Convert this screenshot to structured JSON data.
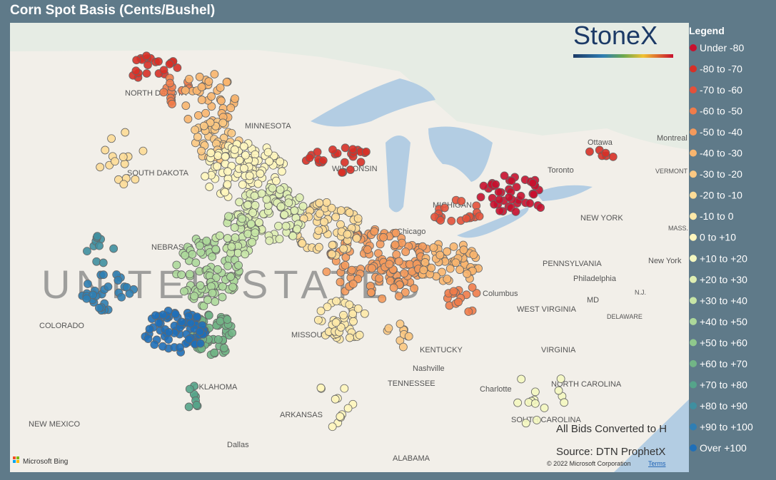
{
  "header": {
    "title": "Corn Spot Basis (Cents/Bushel)"
  },
  "logo": "StoneX",
  "legend": {
    "title": "Legend",
    "items": [
      {
        "label": "Under -80",
        "color": "#c8102e"
      },
      {
        "label": "-80 to -70",
        "color": "#d73027"
      },
      {
        "label": "-70 to -60",
        "color": "#e4513a"
      },
      {
        "label": "-60 to -50",
        "color": "#f07c4a"
      },
      {
        "label": "-50 to -40",
        "color": "#f49a5c"
      },
      {
        "label": "-40 to -30",
        "color": "#f8b56e"
      },
      {
        "label": "-30 to -20",
        "color": "#fbc882"
      },
      {
        "label": "-20 to -10",
        "color": "#fddc97"
      },
      {
        "label": "-10 to 0",
        "color": "#fee9a8"
      },
      {
        "label": "0 to +10",
        "color": "#fff6bd"
      },
      {
        "label": "+10 to +20",
        "color": "#f4f7c0"
      },
      {
        "label": "+20 to +30",
        "color": "#dfeeb2"
      },
      {
        "label": "+30 to +40",
        "color": "#c7e5a6"
      },
      {
        "label": "+40 to +50",
        "color": "#acd89a"
      },
      {
        "label": "+50 to +60",
        "color": "#8fc88c"
      },
      {
        "label": "+60 to +70",
        "color": "#72b586"
      },
      {
        "label": "+70 to +80",
        "color": "#55a48a"
      },
      {
        "label": "+80 to +90",
        "color": "#3f8fa0"
      },
      {
        "label": "+90 to +100",
        "color": "#2f7eb3"
      },
      {
        "label": "Over +100",
        "color": "#1f6fb8"
      }
    ]
  },
  "map_labels": [
    "NORTH DAKOTA",
    "MINNESOTA",
    "SOUTH DAKOTA",
    "NEBRASKA",
    "COLORADO",
    "MISSOURI",
    "KENTUCKY",
    "TENNESSEE",
    "OKLAHOMA",
    "ARKANSAS",
    "NEW MEXICO",
    "ALABAMA",
    "WEST VIRGINIA",
    "VIRGINIA",
    "NORTH CAROLINA",
    "SOUTH CAROLINA",
    "NEW YORK",
    "PENNSYLVANIA",
    "MICHIGAN",
    "WISCONSIN",
    "Ottawa",
    "Montreal",
    "Chicago",
    "Columbus",
    "Philadelphia",
    "New York",
    "Nashville",
    "Charlotte",
    "Dallas",
    "Toronto",
    "VERMONT",
    "MD",
    "DELAWARE",
    "N.J.",
    "MASS.",
    "UNITED STATES"
  ],
  "notes": {
    "conversion": "All Bids Converted to H",
    "source": "Source: DTN ProphetX"
  },
  "footer": {
    "bing": "Microsoft Bing",
    "copyright": "© 2022 Microsoft Corporation",
    "terms": "Terms"
  }
}
